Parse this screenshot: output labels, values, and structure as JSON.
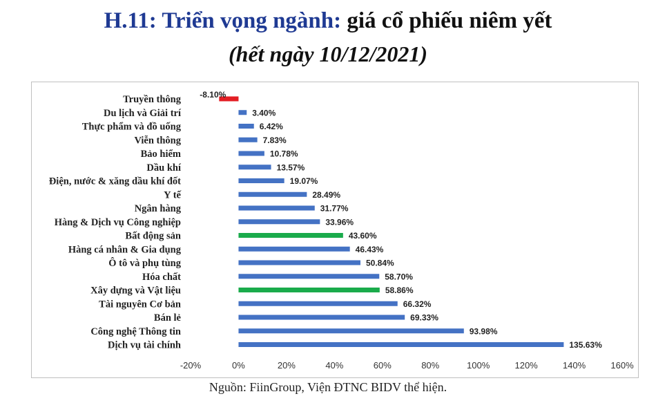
{
  "header": {
    "title_highlight": "H.11: Triển vọng ngành:",
    "title_rest": " giá cổ phiếu niêm yết",
    "subtitle": "(hết ngày 10/12/2021)"
  },
  "source": "Nguồn: FiinGroup, Viện ĐTNC BIDV thể hiện.",
  "colors": {
    "default": "#4472c4",
    "negative": "#e31e24",
    "highlight": "#1aab4b"
  },
  "chart_data": {
    "type": "bar",
    "orientation": "horizontal",
    "title": "",
    "xlabel": "",
    "ylabel": "",
    "xlim": [
      -20,
      160
    ],
    "x_ticks": [
      -20,
      0,
      20,
      40,
      60,
      80,
      100,
      120,
      140,
      160
    ],
    "x_tick_labels": [
      "-20%",
      "0%",
      "20%",
      "40%",
      "60%",
      "80%",
      "100%",
      "120%",
      "140%",
      "160%"
    ],
    "grid": false,
    "legend": "none",
    "categories": [
      "Truyền thông",
      "Du lịch và Giải trí",
      "Thực phẩm và đồ uống",
      "Viễn thông",
      "Bảo hiểm",
      "Dầu khí",
      "Điện, nước & xăng dầu khí đốt",
      "Y tế",
      "Ngân hàng",
      "Hàng & Dịch vụ Công nghiệp",
      "Bất động sản",
      "Hàng cá nhân & Gia dụng",
      "Ô tô và phụ tùng",
      "Hóa chất",
      "Xây dựng và Vật liệu",
      "Tài nguyên Cơ bản",
      "Bán lẻ",
      "Công nghệ Thông tin",
      "Dịch vụ tài chính"
    ],
    "values": [
      -8.1,
      3.4,
      6.42,
      7.83,
      10.78,
      13.57,
      19.07,
      28.49,
      31.77,
      33.96,
      43.6,
      46.43,
      50.84,
      58.7,
      58.86,
      66.32,
      69.33,
      93.98,
      135.63
    ],
    "value_labels": [
      "-8.10%",
      "3.40%",
      "6.42%",
      "7.83%",
      "10.78%",
      "13.57%",
      "19.07%",
      "28.49%",
      "31.77%",
      "33.96%",
      "43.60%",
      "46.43%",
      "50.84%",
      "58.70%",
      "58.86%",
      "66.32%",
      "69.33%",
      "93.98%",
      "135.63%"
    ],
    "bar_colors": [
      "negative",
      "default",
      "default",
      "default",
      "default",
      "default",
      "default",
      "default",
      "default",
      "default",
      "highlight",
      "default",
      "default",
      "default",
      "highlight",
      "default",
      "default",
      "default",
      "default"
    ]
  }
}
